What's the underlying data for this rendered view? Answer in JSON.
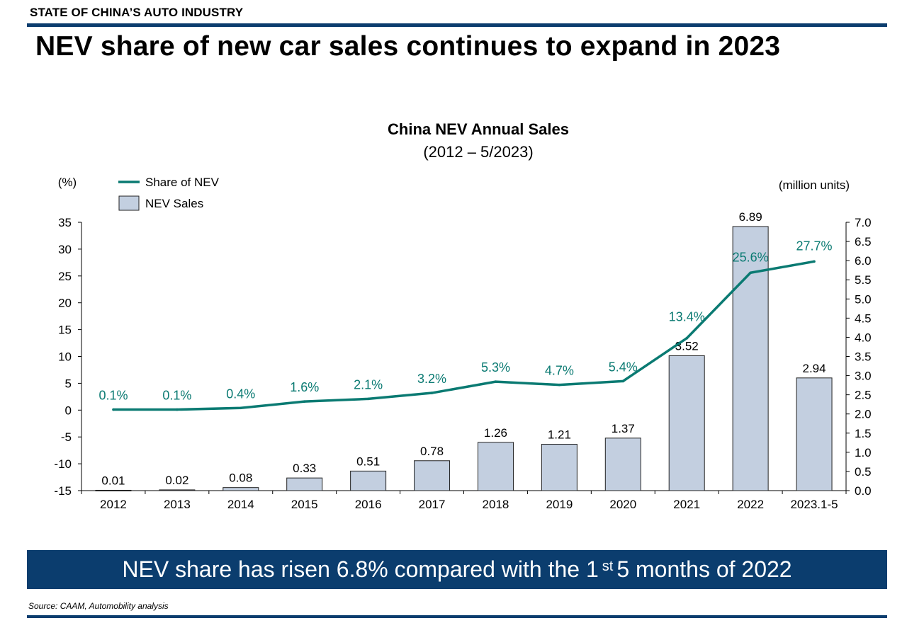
{
  "header": {
    "kicker": "STATE OF CHINA’S AUTO INDUSTRY",
    "headline": "NEV share of new car sales continues to expand in 2023"
  },
  "banner": {
    "text_before": "NEV share has risen 6.8% compared with the 1",
    "superscript": "st",
    "text_after": "5 months of 2022"
  },
  "footer": {
    "source": "Source: CAAM, Automobility analysis"
  },
  "colors": {
    "navy": "#0b3d6e",
    "teal": "#0a7a72",
    "bar_fill": "#c3cfe0",
    "bar_stroke": "#222222"
  },
  "chart_data": {
    "type": "bar",
    "title": "China NEV Annual Sales",
    "subtitle": "(2012 – 5/2023)",
    "categories": [
      "2012",
      "2013",
      "2014",
      "2015",
      "2016",
      "2017",
      "2018",
      "2019",
      "2020",
      "2021",
      "2022",
      "2023.1-5"
    ],
    "left_axis": {
      "label": "(%)",
      "min": -15,
      "max": 35,
      "ticks": [
        35,
        30,
        25,
        20,
        15,
        10,
        5,
        0,
        -5,
        -10,
        -15
      ]
    },
    "right_axis": {
      "label": "(million units)",
      "min": 0.0,
      "max": 7.0,
      "ticks": [
        "7.0",
        "6.5",
        "6.0",
        "5.5",
        "5.0",
        "4.5",
        "4.0",
        "3.5",
        "3.0",
        "2.5",
        "2.0",
        "1.5",
        "1.0",
        "0.5",
        "0.0"
      ]
    },
    "series": [
      {
        "name": "NEV Sales",
        "type": "bar",
        "axis": "right",
        "values": [
          0.01,
          0.02,
          0.08,
          0.33,
          0.51,
          0.78,
          1.26,
          1.21,
          1.37,
          3.52,
          6.89,
          2.94
        ],
        "labels": [
          "0.01",
          "0.02",
          "0.08",
          "0.33",
          "0.51",
          "0.78",
          "1.26",
          "1.21",
          "1.37",
          "3.52",
          "6.89",
          "2.94"
        ]
      },
      {
        "name": "Share of NEV",
        "type": "line",
        "axis": "left",
        "values": [
          0.1,
          0.1,
          0.4,
          1.6,
          2.1,
          3.2,
          5.3,
          4.7,
          5.4,
          13.4,
          25.6,
          27.7
        ],
        "labels": [
          "0.1%",
          "0.1%",
          "0.4%",
          "1.6%",
          "2.1%",
          "3.2%",
          "5.3%",
          "4.7%",
          "5.4%",
          "13.4%",
          "25.6%",
          "27.7%"
        ]
      }
    ],
    "legend": {
      "position": "top-left",
      "entries": [
        "Share of NEV",
        "NEV Sales"
      ]
    }
  }
}
